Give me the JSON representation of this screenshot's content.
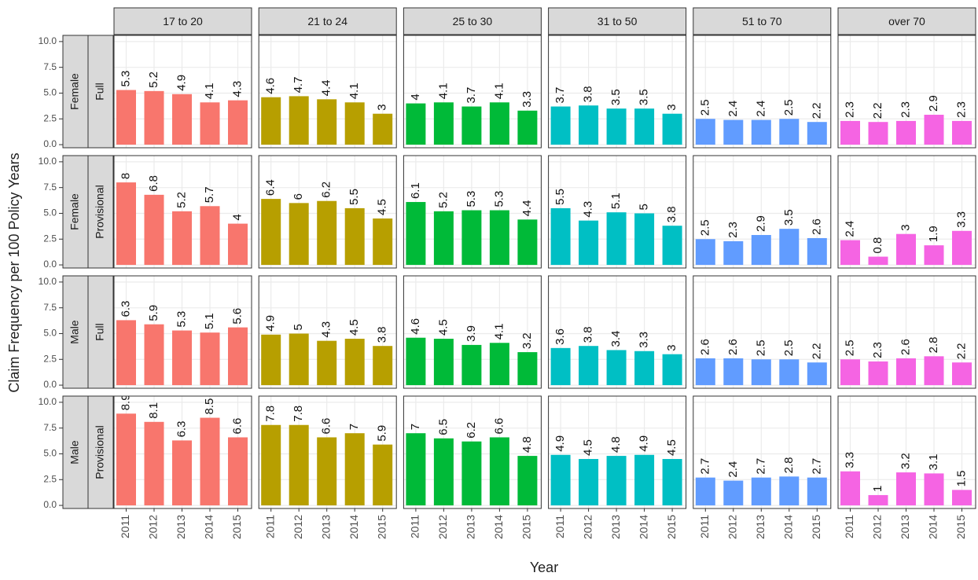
{
  "chart_data": {
    "type": "bar",
    "y_label": "Claim Frequency per 100 Policy Years",
    "x_label": "Year",
    "categories": [
      "2011",
      "2012",
      "2013",
      "2014",
      "2015"
    ],
    "ylim": [
      -0.3,
      10.6
    ],
    "yticks": [
      {
        "value": 0,
        "label": "0.0"
      },
      {
        "value": 2.5,
        "label": "2.5"
      },
      {
        "value": 5,
        "label": "5.0"
      },
      {
        "value": 7.5,
        "label": "7.5"
      },
      {
        "value": 10,
        "label": "10.0"
      }
    ],
    "grid": true,
    "columns": [
      "17 to 20",
      "21 to 24",
      "25 to 30",
      "31 to 50",
      "51 to 70",
      "over 70"
    ],
    "colors": [
      "#F8766D",
      "#B79F00",
      "#00BA38",
      "#00BFC4",
      "#619CFF",
      "#F564E3"
    ],
    "rows": [
      {
        "gender": "Female",
        "license": "Full",
        "values": [
          [
            5.3,
            5.2,
            4.9,
            4.1,
            4.3
          ],
          [
            4.6,
            4.7,
            4.4,
            4.1,
            3
          ],
          [
            4,
            4.1,
            3.7,
            4.1,
            3.3
          ],
          [
            3.7,
            3.8,
            3.5,
            3.5,
            3
          ],
          [
            2.5,
            2.4,
            2.4,
            2.5,
            2.2
          ],
          [
            2.3,
            2.2,
            2.3,
            2.9,
            2.3
          ]
        ]
      },
      {
        "gender": "Female",
        "license": "Provisional",
        "values": [
          [
            8,
            6.8,
            5.2,
            5.7,
            4
          ],
          [
            6.4,
            6,
            6.2,
            5.5,
            4.5
          ],
          [
            6.1,
            5.2,
            5.3,
            5.3,
            4.4
          ],
          [
            5.5,
            4.3,
            5.1,
            5,
            3.8
          ],
          [
            2.5,
            2.3,
            2.9,
            3.5,
            2.6
          ],
          [
            2.4,
            0.8,
            3,
            1.9,
            3.3
          ]
        ]
      },
      {
        "gender": "Male",
        "license": "Full",
        "values": [
          [
            6.3,
            5.9,
            5.3,
            5.1,
            5.6
          ],
          [
            4.9,
            5,
            4.3,
            4.5,
            3.8
          ],
          [
            4.6,
            4.5,
            3.9,
            4.1,
            3.2
          ],
          [
            3.6,
            3.8,
            3.4,
            3.3,
            3
          ],
          [
            2.6,
            2.6,
            2.5,
            2.5,
            2.2
          ],
          [
            2.5,
            2.3,
            2.6,
            2.8,
            2.2
          ]
        ]
      },
      {
        "gender": "Male",
        "license": "Provisional",
        "values": [
          [
            8.9,
            8.1,
            6.3,
            8.5,
            6.6
          ],
          [
            7.8,
            7.8,
            6.6,
            7,
            5.9
          ],
          [
            7,
            6.5,
            6.2,
            6.6,
            4.8
          ],
          [
            4.9,
            4.5,
            4.8,
            4.9,
            4.5
          ],
          [
            2.7,
            2.4,
            2.7,
            2.8,
            2.7
          ],
          [
            3.3,
            1,
            3.2,
            3.1,
            1.5
          ]
        ]
      }
    ]
  }
}
